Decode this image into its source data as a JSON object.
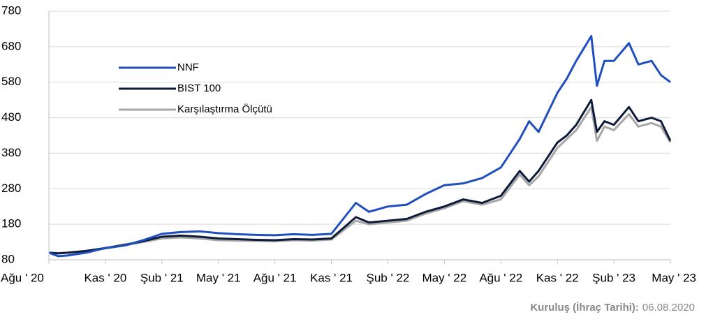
{
  "chart_data": {
    "type": "line",
    "x": [
      0,
      0.5,
      1,
      2,
      3,
      4,
      5,
      6,
      7,
      8,
      9,
      10,
      11,
      12,
      13,
      14,
      15,
      16.3,
      17,
      18,
      19,
      20,
      21,
      22,
      23,
      24,
      25,
      25.5,
      26,
      27,
      27.5,
      28,
      28.8,
      29.1,
      29.5,
      30,
      30.8,
      31.3,
      32,
      32.5,
      33
    ],
    "series": [
      {
        "name": "NNF",
        "color": "#1f4fbf",
        "values": [
          100,
          90,
          92,
          100,
          113,
          120,
          135,
          153,
          158,
          160,
          155,
          152,
          150,
          149,
          152,
          150,
          153,
          240,
          215,
          230,
          235,
          265,
          290,
          295,
          310,
          340,
          420,
          470,
          440,
          550,
          590,
          640,
          710,
          570,
          640,
          640,
          690,
          630,
          640,
          600,
          580
        ]
      },
      {
        "name": "BIST 100",
        "color": "#0d1b3a",
        "values": [
          100,
          98,
          100,
          105,
          113,
          122,
          132,
          145,
          148,
          145,
          140,
          138,
          136,
          135,
          138,
          137,
          140,
          200,
          185,
          190,
          195,
          215,
          230,
          250,
          240,
          260,
          330,
          300,
          330,
          410,
          430,
          460,
          530,
          440,
          470,
          460,
          510,
          470,
          480,
          470,
          415
        ]
      },
      {
        "name": "Karşılaştırma Ölçütü",
        "color": "#a6a6a6",
        "values": [
          100,
          99,
          100,
          104,
          112,
          120,
          130,
          140,
          143,
          140,
          135,
          134,
          133,
          132,
          135,
          134,
          137,
          190,
          180,
          185,
          190,
          210,
          225,
          245,
          235,
          250,
          320,
          290,
          315,
          395,
          420,
          445,
          510,
          415,
          455,
          445,
          490,
          455,
          465,
          455,
          410
        ]
      }
    ],
    "xlim": [
      0,
      33
    ],
    "xticks": [
      {
        "value": 0,
        "label": "Ağu ' 20"
      },
      {
        "value": 3,
        "label": "Kas ' 20"
      },
      {
        "value": 6,
        "label": "Şub ' 21"
      },
      {
        "value": 9,
        "label": "May ' 21"
      },
      {
        "value": 12,
        "label": "Ağu ' 21"
      },
      {
        "value": 15,
        "label": "Kas ' 21"
      },
      {
        "value": 18,
        "label": "Şub ' 22"
      },
      {
        "value": 21,
        "label": "May ' 22"
      },
      {
        "value": 24,
        "label": "Ağu ' 22"
      },
      {
        "value": 27,
        "label": "Kas ' 22"
      },
      {
        "value": 30,
        "label": "Şub ' 23"
      },
      {
        "value": 33,
        "label": "May ' 23"
      }
    ],
    "ylim": [
      80,
      780
    ],
    "yticks": [
      80,
      180,
      280,
      380,
      480,
      580,
      680,
      780
    ],
    "grid": true,
    "footer_label": "Kuruluş (İhraç Tarihi):",
    "footer_value": "06.08.2020"
  }
}
